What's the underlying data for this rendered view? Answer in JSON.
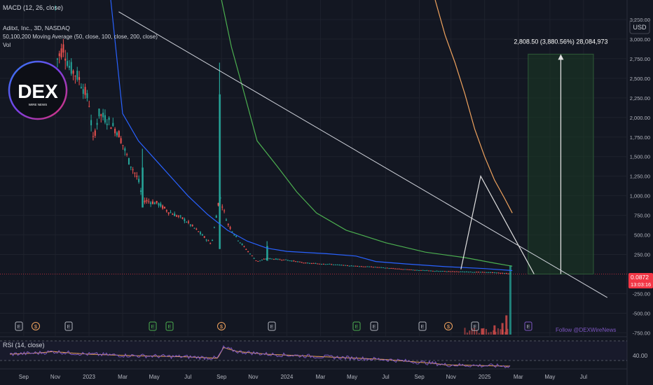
{
  "header": {
    "indicator_top": "MACD (12, 26, close)",
    "symbol": "Aditxt, Inc., 3D, NASDAQ",
    "ma_legend": "50,100,200 Moving Average (50, close, 100, close, 200, close)",
    "vol_label": "Vol",
    "currency_button": "USD"
  },
  "logo": {
    "text": "DEX",
    "subtext": "WIRE NEWS"
  },
  "measure": {
    "label": "2,808.50 (3,880.56%) 28,084,973"
  },
  "price_badge": {
    "price": "0.0872",
    "countdown": "13:03:16"
  },
  "follow_text": "Follow @DEXWireNews",
  "rsi": {
    "label": "RSI (14, close)",
    "tick": "40.00"
  },
  "event_markers": [
    "E",
    "$",
    "E",
    "E",
    "E",
    "$",
    "E",
    "E",
    "E",
    "E",
    "$",
    "E",
    "E"
  ],
  "colors": {
    "background": "#131722",
    "up_candle": "#26a69a",
    "down_candle": "#ef5350",
    "ma50": "#2962ff",
    "ma100": "#4caf50",
    "ma200": "#f0a35e",
    "rsi_line": "#7e57c2",
    "rsi_signal": "#f0a35e",
    "badge": "#f23645"
  },
  "chart_data": {
    "type": "line",
    "title": "Aditxt, Inc., 3D, NASDAQ",
    "y_axis": {
      "ticks": [
        "3,250.00",
        "3,000.00",
        "2,750.00",
        "2,500.00",
        "2,250.00",
        "2,000.00",
        "1,750.00",
        "1,500.00",
        "1,250.00",
        "1,000.00",
        "750.00",
        "500.00",
        "250.00",
        "-250.00",
        "-500.00",
        "-750.00"
      ],
      "tick_values": [
        3250,
        3000,
        2750,
        2500,
        2250,
        2000,
        1750,
        1500,
        1250,
        1000,
        750,
        500,
        250,
        -250,
        -500,
        -750
      ],
      "range": [
        -800,
        3500
      ]
    },
    "x_axis": {
      "ticks": [
        "Sep",
        "Nov",
        "2023",
        "Mar",
        "May",
        "Jul",
        "Sep",
        "Nov",
        "2024",
        "Mar",
        "May",
        "Jul",
        "Sep",
        "Nov",
        "2025",
        "Mar",
        "May",
        "Jul"
      ],
      "tick_values": [
        2022.67,
        2022.83,
        2023.0,
        2023.17,
        2023.33,
        2023.5,
        2023.67,
        2023.83,
        2024.0,
        2024.17,
        2024.33,
        2024.5,
        2024.67,
        2024.83,
        2025.0,
        2025.17,
        2025.33,
        2025.5
      ],
      "range": [
        2022.55,
        2025.72
      ]
    },
    "series": [
      {
        "name": "Price",
        "points": [
          [
            2022.83,
            3400
          ],
          [
            2022.84,
            2750
          ],
          [
            2022.87,
            2900
          ],
          [
            2022.9,
            2650
          ],
          [
            2022.95,
            2500
          ],
          [
            2023.0,
            2200
          ],
          [
            2023.02,
            1700
          ],
          [
            2023.05,
            2050
          ],
          [
            2023.1,
            1950
          ],
          [
            2023.15,
            1800
          ],
          [
            2023.2,
            1450
          ],
          [
            2023.25,
            1200
          ],
          [
            2023.27,
            950
          ],
          [
            2023.35,
            900
          ],
          [
            2023.4,
            800
          ],
          [
            2023.48,
            700
          ],
          [
            2023.55,
            550
          ],
          [
            2023.62,
            380
          ],
          [
            2023.66,
            1000
          ],
          [
            2023.7,
            650
          ],
          [
            2023.75,
            450
          ],
          [
            2023.8,
            300
          ],
          [
            2023.85,
            160
          ],
          [
            2023.9,
            200
          ],
          [
            2024.0,
            180
          ],
          [
            2024.1,
            140
          ],
          [
            2024.2,
            130
          ],
          [
            2024.3,
            110
          ],
          [
            2024.45,
            90
          ],
          [
            2024.6,
            60
          ],
          [
            2024.75,
            40
          ],
          [
            2024.9,
            30
          ],
          [
            2025.05,
            20
          ],
          [
            2025.14,
            5
          ]
        ]
      },
      {
        "name": "MA 50",
        "points": [
          [
            2023.11,
            3500
          ],
          [
            2023.17,
            2050
          ],
          [
            2023.25,
            1700
          ],
          [
            2023.35,
            1420
          ],
          [
            2023.5,
            1000
          ],
          [
            2023.6,
            760
          ],
          [
            2023.7,
            560
          ],
          [
            2023.8,
            420
          ],
          [
            2023.9,
            330
          ],
          [
            2024.0,
            290
          ],
          [
            2024.2,
            260
          ],
          [
            2024.35,
            230
          ],
          [
            2024.45,
            160
          ],
          [
            2024.6,
            130
          ],
          [
            2024.8,
            95
          ],
          [
            2025.0,
            70
          ],
          [
            2025.14,
            45
          ]
        ]
      },
      {
        "name": "MA 100",
        "points": [
          [
            2023.67,
            3500
          ],
          [
            2023.72,
            2900
          ],
          [
            2023.78,
            2350
          ],
          [
            2023.85,
            1700
          ],
          [
            2023.95,
            1380
          ],
          [
            2024.05,
            1050
          ],
          [
            2024.15,
            780
          ],
          [
            2024.3,
            560
          ],
          [
            2024.5,
            400
          ],
          [
            2024.7,
            280
          ],
          [
            2024.9,
            210
          ],
          [
            2025.05,
            140
          ],
          [
            2025.14,
            100
          ]
        ]
      },
      {
        "name": "MA 200",
        "points": [
          [
            2024.75,
            3500
          ],
          [
            2024.8,
            3050
          ],
          [
            2024.85,
            2700
          ],
          [
            2024.9,
            2300
          ],
          [
            2024.95,
            1850
          ],
          [
            2025.0,
            1500
          ],
          [
            2025.05,
            1200
          ],
          [
            2025.1,
            970
          ],
          [
            2025.14,
            780
          ]
        ]
      }
    ],
    "annotations": {
      "trendline": [
        [
          2023.15,
          3350
        ],
        [
          2025.62,
          -300
        ]
      ],
      "projection": [
        [
          2024.88,
          60
        ],
        [
          2024.98,
          1250
        ],
        [
          2025.25,
          0
        ]
      ],
      "measure_range": [
        2025.22,
        2025.55
      ],
      "measure_from": 0,
      "measure_to": 2808.5,
      "current_price": 0.0872
    },
    "volume_spikes": [
      [
        2025.13,
        0.9
      ],
      [
        2025.11,
        0.25
      ],
      [
        2025.09,
        0.15
      ],
      [
        2025.05,
        0.12
      ],
      [
        2024.99,
        0.08
      ]
    ],
    "rsi_values": [
      [
        2022.6,
        40
      ],
      [
        2022.75,
        41
      ],
      [
        2022.82,
        42
      ],
      [
        2022.9,
        41
      ],
      [
        2023.0,
        40
      ],
      [
        2023.2,
        39
      ],
      [
        2023.5,
        38
      ],
      [
        2023.65,
        37
      ],
      [
        2023.68,
        45
      ],
      [
        2023.75,
        42
      ],
      [
        2023.9,
        40
      ],
      [
        2024.2,
        38
      ],
      [
        2024.5,
        36
      ],
      [
        2024.75,
        33
      ],
      [
        2024.8,
        32
      ],
      [
        2025.13,
        31
      ]
    ]
  }
}
